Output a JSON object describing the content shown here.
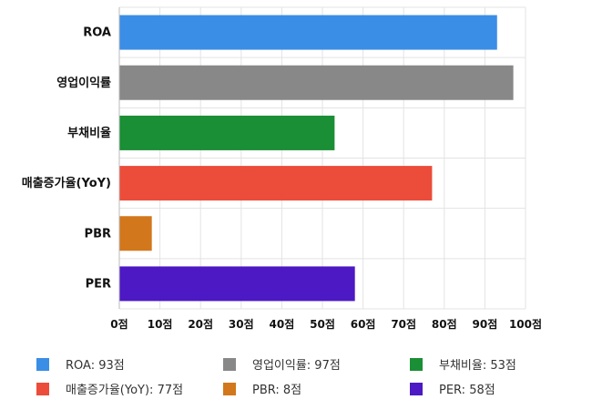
{
  "chart_data": {
    "type": "bar",
    "orientation": "horizontal",
    "categories": [
      "ROA",
      "영업이익률",
      "부채비율",
      "매출증가율(YoY)",
      "PBR",
      "PER"
    ],
    "values": [
      93,
      97,
      53,
      77,
      8,
      58
    ],
    "colors": [
      "#3a8ee6",
      "#888888",
      "#1a8f35",
      "#eb4d3a",
      "#d2771c",
      "#4c19c4"
    ],
    "xlim": [
      0,
      100
    ],
    "xticks": [
      0,
      10,
      20,
      30,
      40,
      50,
      60,
      70,
      80,
      90,
      100
    ],
    "xtick_labels": [
      "0점",
      "10점",
      "20점",
      "30점",
      "40점",
      "50점",
      "60점",
      "70점",
      "80점",
      "90점",
      "100점"
    ],
    "grid": true,
    "legend_position": "bottom",
    "legend": [
      "ROA: 93점",
      "영업이익률: 97점",
      "부채비율: 53점",
      "매출증가율(YoY): 77점",
      "PBR: 8점",
      "PER: 58점"
    ]
  }
}
